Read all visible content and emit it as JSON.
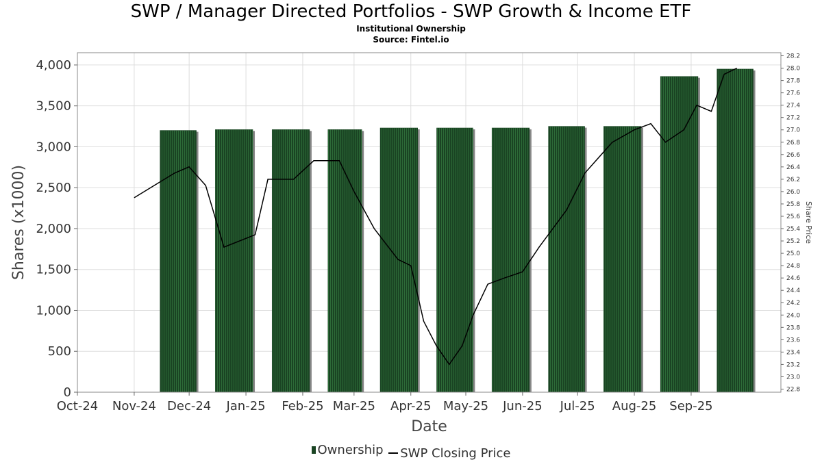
{
  "title": "SWP / Manager Directed Portfolios - SWP Growth & Income ETF",
  "subtitle": "Institutional Ownership",
  "source": "Source: Fintel.io",
  "colors": {
    "bar": "#1a4423",
    "bar_stripe": "#2d6b38",
    "bar_shadow": "#888888",
    "line": "#000000",
    "grid": "#dddddd"
  },
  "legend": {
    "ownership_label": "Ownership",
    "price_label": "SWP Closing Price"
  },
  "chart_data": {
    "type": "bar",
    "title": "SWP / Manager Directed Portfolios - SWP Growth & Income ETF",
    "xlabel": "Date",
    "ylabel": "Shares (x1000)",
    "y2label": "Share Price",
    "ylim": [
      0,
      4150
    ],
    "y2lim": [
      22.75,
      28.25
    ],
    "grid": true,
    "legend_position": "bottom",
    "x_ticks": [
      "Oct-24",
      "Nov-24",
      "Dec-24",
      "Jan-25",
      "Feb-25",
      "Mar-25",
      "Apr-25",
      "May-25",
      "Jun-25",
      "Jul-25",
      "Aug-25",
      "Sep-25"
    ],
    "y_ticks": [
      "0",
      "500",
      "1,000",
      "1,500",
      "2,000",
      "2,500",
      "3,000",
      "3,500",
      "4,000"
    ],
    "y_tick_values": [
      0,
      500,
      1000,
      1500,
      2000,
      2500,
      3000,
      3500,
      4000
    ],
    "y2_ticks": [
      "22.8",
      "23.0",
      "23.2",
      "23.4",
      "23.6",
      "23.8",
      "24.0",
      "24.2",
      "24.4",
      "24.6",
      "24.8",
      "25.0",
      "25.2",
      "25.4",
      "25.6",
      "25.8",
      "26.0",
      "26.2",
      "26.4",
      "26.6",
      "26.8",
      "27.0",
      "27.2",
      "27.4",
      "27.6",
      "27.8",
      "28.0",
      "28.2"
    ],
    "y2_tick_values": [
      22.8,
      23.0,
      23.2,
      23.4,
      23.6,
      23.8,
      24.0,
      24.2,
      24.4,
      24.6,
      24.8,
      25.0,
      25.2,
      25.4,
      25.6,
      25.8,
      26.0,
      26.2,
      26.4,
      26.6,
      26.8,
      27.0,
      27.2,
      27.4,
      27.6,
      27.8,
      28.0,
      28.2
    ],
    "series": [
      {
        "name": "Ownership",
        "type": "bar",
        "axis": "left",
        "points": [
          {
            "start": "2024-11-10",
            "end": "2024-12-10",
            "value": 3200
          },
          {
            "start": "2024-12-10",
            "end": "2025-01-10",
            "value": 3210
          },
          {
            "start": "2025-01-10",
            "end": "2025-02-10",
            "value": 3210
          },
          {
            "start": "2025-02-10",
            "end": "2025-03-10",
            "value": 3210
          },
          {
            "start": "2025-03-10",
            "end": "2025-04-10",
            "value": 3230
          },
          {
            "start": "2025-04-10",
            "end": "2025-05-10",
            "value": 3230
          },
          {
            "start": "2025-05-10",
            "end": "2025-06-10",
            "value": 3230
          },
          {
            "start": "2025-06-10",
            "end": "2025-07-10",
            "value": 3250
          },
          {
            "start": "2025-07-10",
            "end": "2025-08-10",
            "value": 3250
          },
          {
            "start": "2025-08-10",
            "end": "2025-09-10",
            "value": 3860
          },
          {
            "start": "2025-09-10",
            "end": "2025-10-10",
            "value": 3950
          }
        ]
      },
      {
        "name": "SWP Closing Price",
        "type": "line",
        "axis": "right",
        "points": [
          {
            "date": "2024-11-01",
            "price": 25.9
          },
          {
            "date": "2024-11-12",
            "price": 26.1
          },
          {
            "date": "2024-11-23",
            "price": 26.3
          },
          {
            "date": "2024-12-01",
            "price": 26.4
          },
          {
            "date": "2024-12-10",
            "price": 26.1
          },
          {
            "date": "2024-12-20",
            "price": 25.1
          },
          {
            "date": "2025-01-06",
            "price": 25.3
          },
          {
            "date": "2025-01-13",
            "price": 26.2
          },
          {
            "date": "2025-01-27",
            "price": 26.2
          },
          {
            "date": "2025-02-07",
            "price": 26.5
          },
          {
            "date": "2025-02-21",
            "price": 26.5
          },
          {
            "date": "2025-03-01",
            "price": 26.0
          },
          {
            "date": "2025-03-12",
            "price": 25.4
          },
          {
            "date": "2025-03-25",
            "price": 24.9
          },
          {
            "date": "2025-04-01",
            "price": 24.8
          },
          {
            "date": "2025-04-08",
            "price": 23.9
          },
          {
            "date": "2025-04-15",
            "price": 23.5
          },
          {
            "date": "2025-04-22",
            "price": 23.2
          },
          {
            "date": "2025-04-29",
            "price": 23.5
          },
          {
            "date": "2025-05-05",
            "price": 24.0
          },
          {
            "date": "2025-05-13",
            "price": 24.5
          },
          {
            "date": "2025-05-22",
            "price": 24.6
          },
          {
            "date": "2025-06-01",
            "price": 24.7
          },
          {
            "date": "2025-06-10",
            "price": 25.1
          },
          {
            "date": "2025-06-25",
            "price": 25.7
          },
          {
            "date": "2025-07-05",
            "price": 26.3
          },
          {
            "date": "2025-07-20",
            "price": 26.8
          },
          {
            "date": "2025-08-01",
            "price": 27.0
          },
          {
            "date": "2025-08-10",
            "price": 27.1
          },
          {
            "date": "2025-08-18",
            "price": 26.8
          },
          {
            "date": "2025-08-28",
            "price": 27.0
          },
          {
            "date": "2025-09-04",
            "price": 27.4
          },
          {
            "date": "2025-09-12",
            "price": 27.3
          },
          {
            "date": "2025-09-19",
            "price": 27.9
          },
          {
            "date": "2025-09-26",
            "price": 28.0
          }
        ]
      }
    ]
  }
}
